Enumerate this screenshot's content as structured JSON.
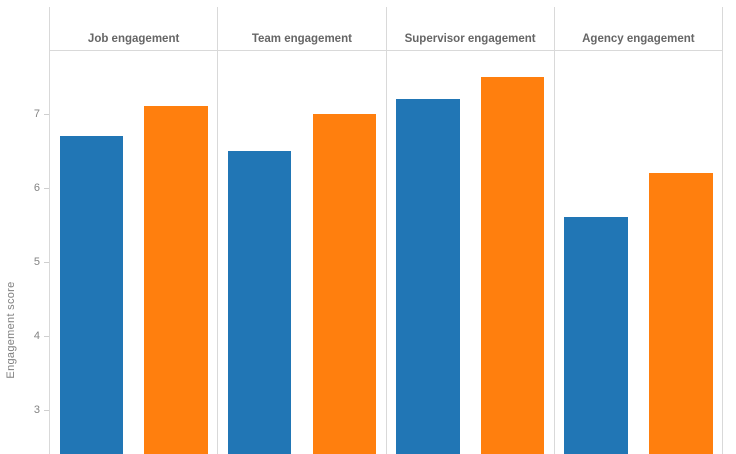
{
  "chart_data": {
    "type": "bar",
    "title": "",
    "categories": [
      "Job engagement",
      "Team engagement",
      "Supervisor engagement",
      "Agency engagement"
    ],
    "series": [
      {
        "name": "blue",
        "color": "#2176b5",
        "values": [
          6.7,
          6.5,
          7.2,
          5.6
        ]
      },
      {
        "name": "orange",
        "color": "#ff7f0e",
        "values": [
          7.1,
          7.0,
          7.5,
          6.2
        ]
      }
    ],
    "xlabel": "",
    "ylabel": "Engagement score",
    "yticks": [
      3,
      4,
      5,
      6,
      7
    ],
    "ylim_visible": [
      2.4,
      7.85
    ],
    "grid": false,
    "legend": "none",
    "layout": "faceted-columns",
    "bottom_axis_cropped": true
  },
  "style": {
    "background": "#ffffff",
    "panel_line_color": "#d9d9d9",
    "tick_mark_color": "#cfcfcf",
    "tick_label_color": "#838383",
    "header_text_color": "#666666",
    "axis_title_color": "#7f7f7f"
  }
}
